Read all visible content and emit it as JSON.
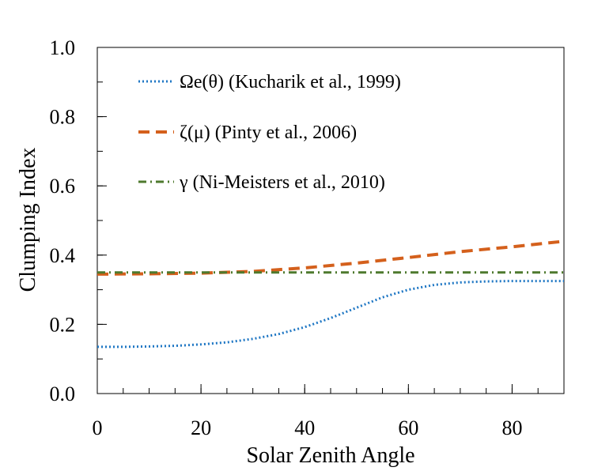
{
  "chart_data": {
    "type": "line",
    "xlabel": "Solar Zenith Angle",
    "ylabel": "Clumping Index",
    "xlim": [
      0,
      90
    ],
    "ylim": [
      0,
      1
    ],
    "xticks": [
      0,
      20,
      40,
      60,
      80
    ],
    "xtick_labels": [
      "0",
      "20",
      "40",
      "60",
      "80"
    ],
    "xminor_step": 5,
    "yticks": [
      0,
      0.2,
      0.4,
      0.6,
      0.8,
      1.0
    ],
    "ytick_labels": [
      "0.0",
      "0.2",
      "0.4",
      "0.6",
      "0.8",
      "1.0"
    ],
    "yminor_step": 0.1,
    "grid": false,
    "legend_placement": "top-left",
    "series": [
      {
        "name": "Ωe(θ) (Kucharik  et al., 1999)",
        "color": "#1f77c4",
        "style": "dotted",
        "x": [
          0,
          5,
          10,
          15,
          20,
          25,
          30,
          35,
          40,
          45,
          50,
          55,
          60,
          65,
          70,
          75,
          80,
          85,
          90
        ],
        "values": [
          0.135,
          0.135,
          0.136,
          0.138,
          0.142,
          0.148,
          0.158,
          0.172,
          0.192,
          0.218,
          0.248,
          0.278,
          0.3,
          0.314,
          0.321,
          0.324,
          0.325,
          0.325,
          0.325
        ]
      },
      {
        "name": "ζ(μ) (Pinty et al., 2006)",
        "color": "#d4601c",
        "style": "dashed",
        "x": [
          0,
          10,
          20,
          30,
          40,
          50,
          60,
          70,
          80,
          90
        ],
        "values": [
          0.345,
          0.346,
          0.348,
          0.353,
          0.363,
          0.377,
          0.393,
          0.41,
          0.424,
          0.44
        ]
      },
      {
        "name": "γ (Ni-Meisters et al., 2010)",
        "color": "#4e7a2e",
        "style": "dashdot",
        "x": [
          0,
          90
        ],
        "values": [
          0.35,
          0.35
        ]
      }
    ]
  }
}
